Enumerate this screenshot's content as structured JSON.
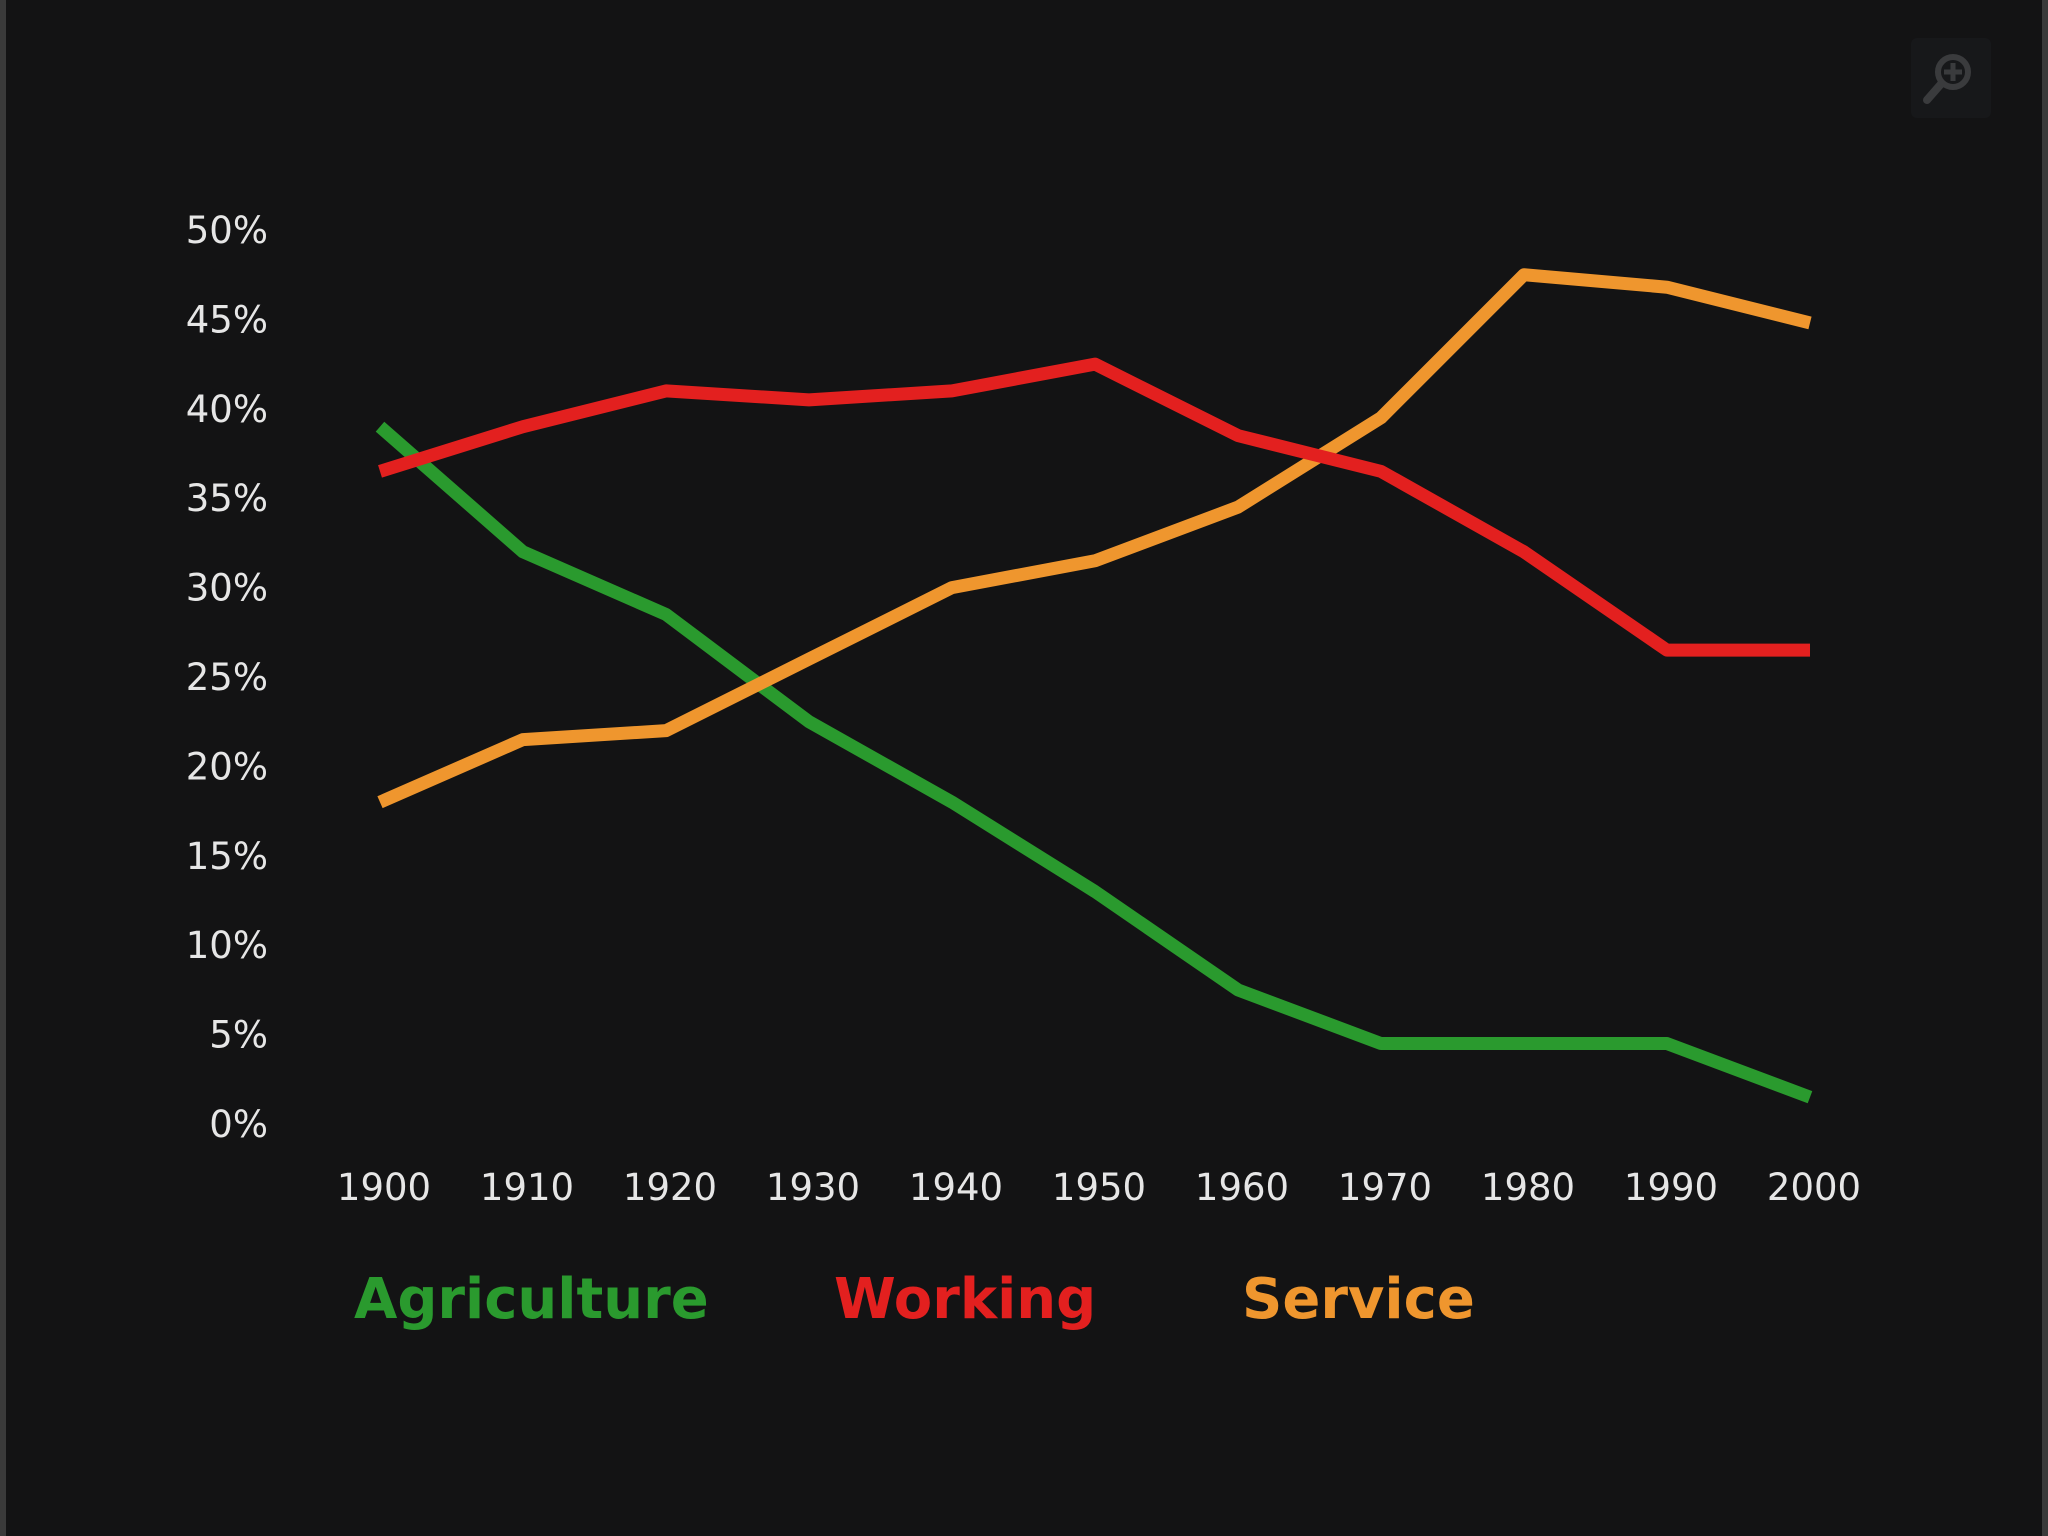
{
  "chart_data": {
    "type": "line",
    "title": "",
    "xlabel": "",
    "ylabel": "",
    "x": [
      1900,
      1910,
      1920,
      1930,
      1940,
      1950,
      1960,
      1970,
      1980,
      1990,
      2000
    ],
    "x_tick_labels": [
      "1900",
      "1910",
      "1920",
      "1930",
      "1940",
      "1950",
      "1960",
      "1970",
      "1980",
      "1990",
      "2000"
    ],
    "y_ticks": [
      0,
      5,
      10,
      15,
      20,
      25,
      30,
      35,
      40,
      45,
      50
    ],
    "y_tick_labels": [
      "0%",
      "5%",
      "10%",
      "15%",
      "20%",
      "25%",
      "30%",
      "35%",
      "40%",
      "45%",
      "50%"
    ],
    "ylim": [
      0,
      50
    ],
    "xlim": [
      1900,
      2000
    ],
    "grid": false,
    "legend_position": "bottom",
    "series": [
      {
        "name": "Agriculture",
        "color": "#2a9a2e",
        "values": [
          39,
          32,
          28.5,
          22.5,
          18,
          13,
          7.5,
          4.5,
          4.5,
          4.5,
          1.5
        ]
      },
      {
        "name": "Working",
        "color": "#e3201f",
        "values": [
          36.5,
          39,
          41,
          40.5,
          41,
          42.5,
          38.5,
          36.5,
          32,
          26.5,
          26.5
        ]
      },
      {
        "name": "Service",
        "color": "#ef962e",
        "values": [
          18,
          21.5,
          22,
          26,
          30,
          31.5,
          34.5,
          39.5,
          47.5,
          46.8,
          44.8
        ]
      }
    ]
  },
  "toolbar": {
    "zoom_icon": "zoom-in-icon",
    "icon_color": "#3a3b3d"
  }
}
